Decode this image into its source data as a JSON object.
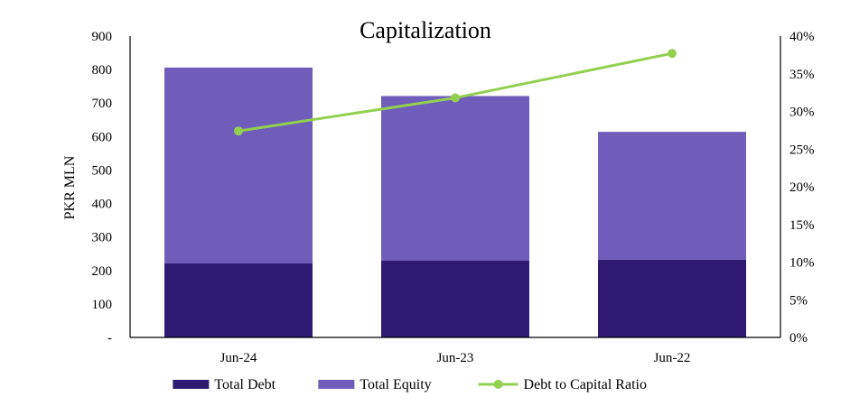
{
  "chart_data": {
    "type": "bar",
    "stacked": true,
    "title": "Capitalization",
    "ylabel": "PKR MLN",
    "categories": [
      "Jun-24",
      "Jun-23",
      "Jun-22"
    ],
    "ylim": [
      0,
      900
    ],
    "y_ticks": [
      "-",
      "100",
      "200",
      "300",
      "400",
      "500",
      "600",
      "700",
      "800",
      "900"
    ],
    "y2lim": [
      0,
      0.4
    ],
    "y2_ticks": [
      "0%",
      "5%",
      "10%",
      "15%",
      "20%",
      "25%",
      "30%",
      "35%",
      "40%"
    ],
    "series": [
      {
        "name": "Total Debt",
        "type": "bar",
        "axis": "left",
        "color": "#2e1a72",
        "values": [
          221,
          229,
          232
        ]
      },
      {
        "name": "Total Equity",
        "type": "bar",
        "axis": "left",
        "color": "#705cbb",
        "values": [
          585,
          492,
          382
        ]
      },
      {
        "name": "Debt to Capital Ratio",
        "type": "line",
        "axis": "right",
        "color": "#92d050",
        "values": [
          0.274,
          0.318,
          0.377
        ]
      }
    ],
    "legend_position": "bottom",
    "grid": false
  }
}
